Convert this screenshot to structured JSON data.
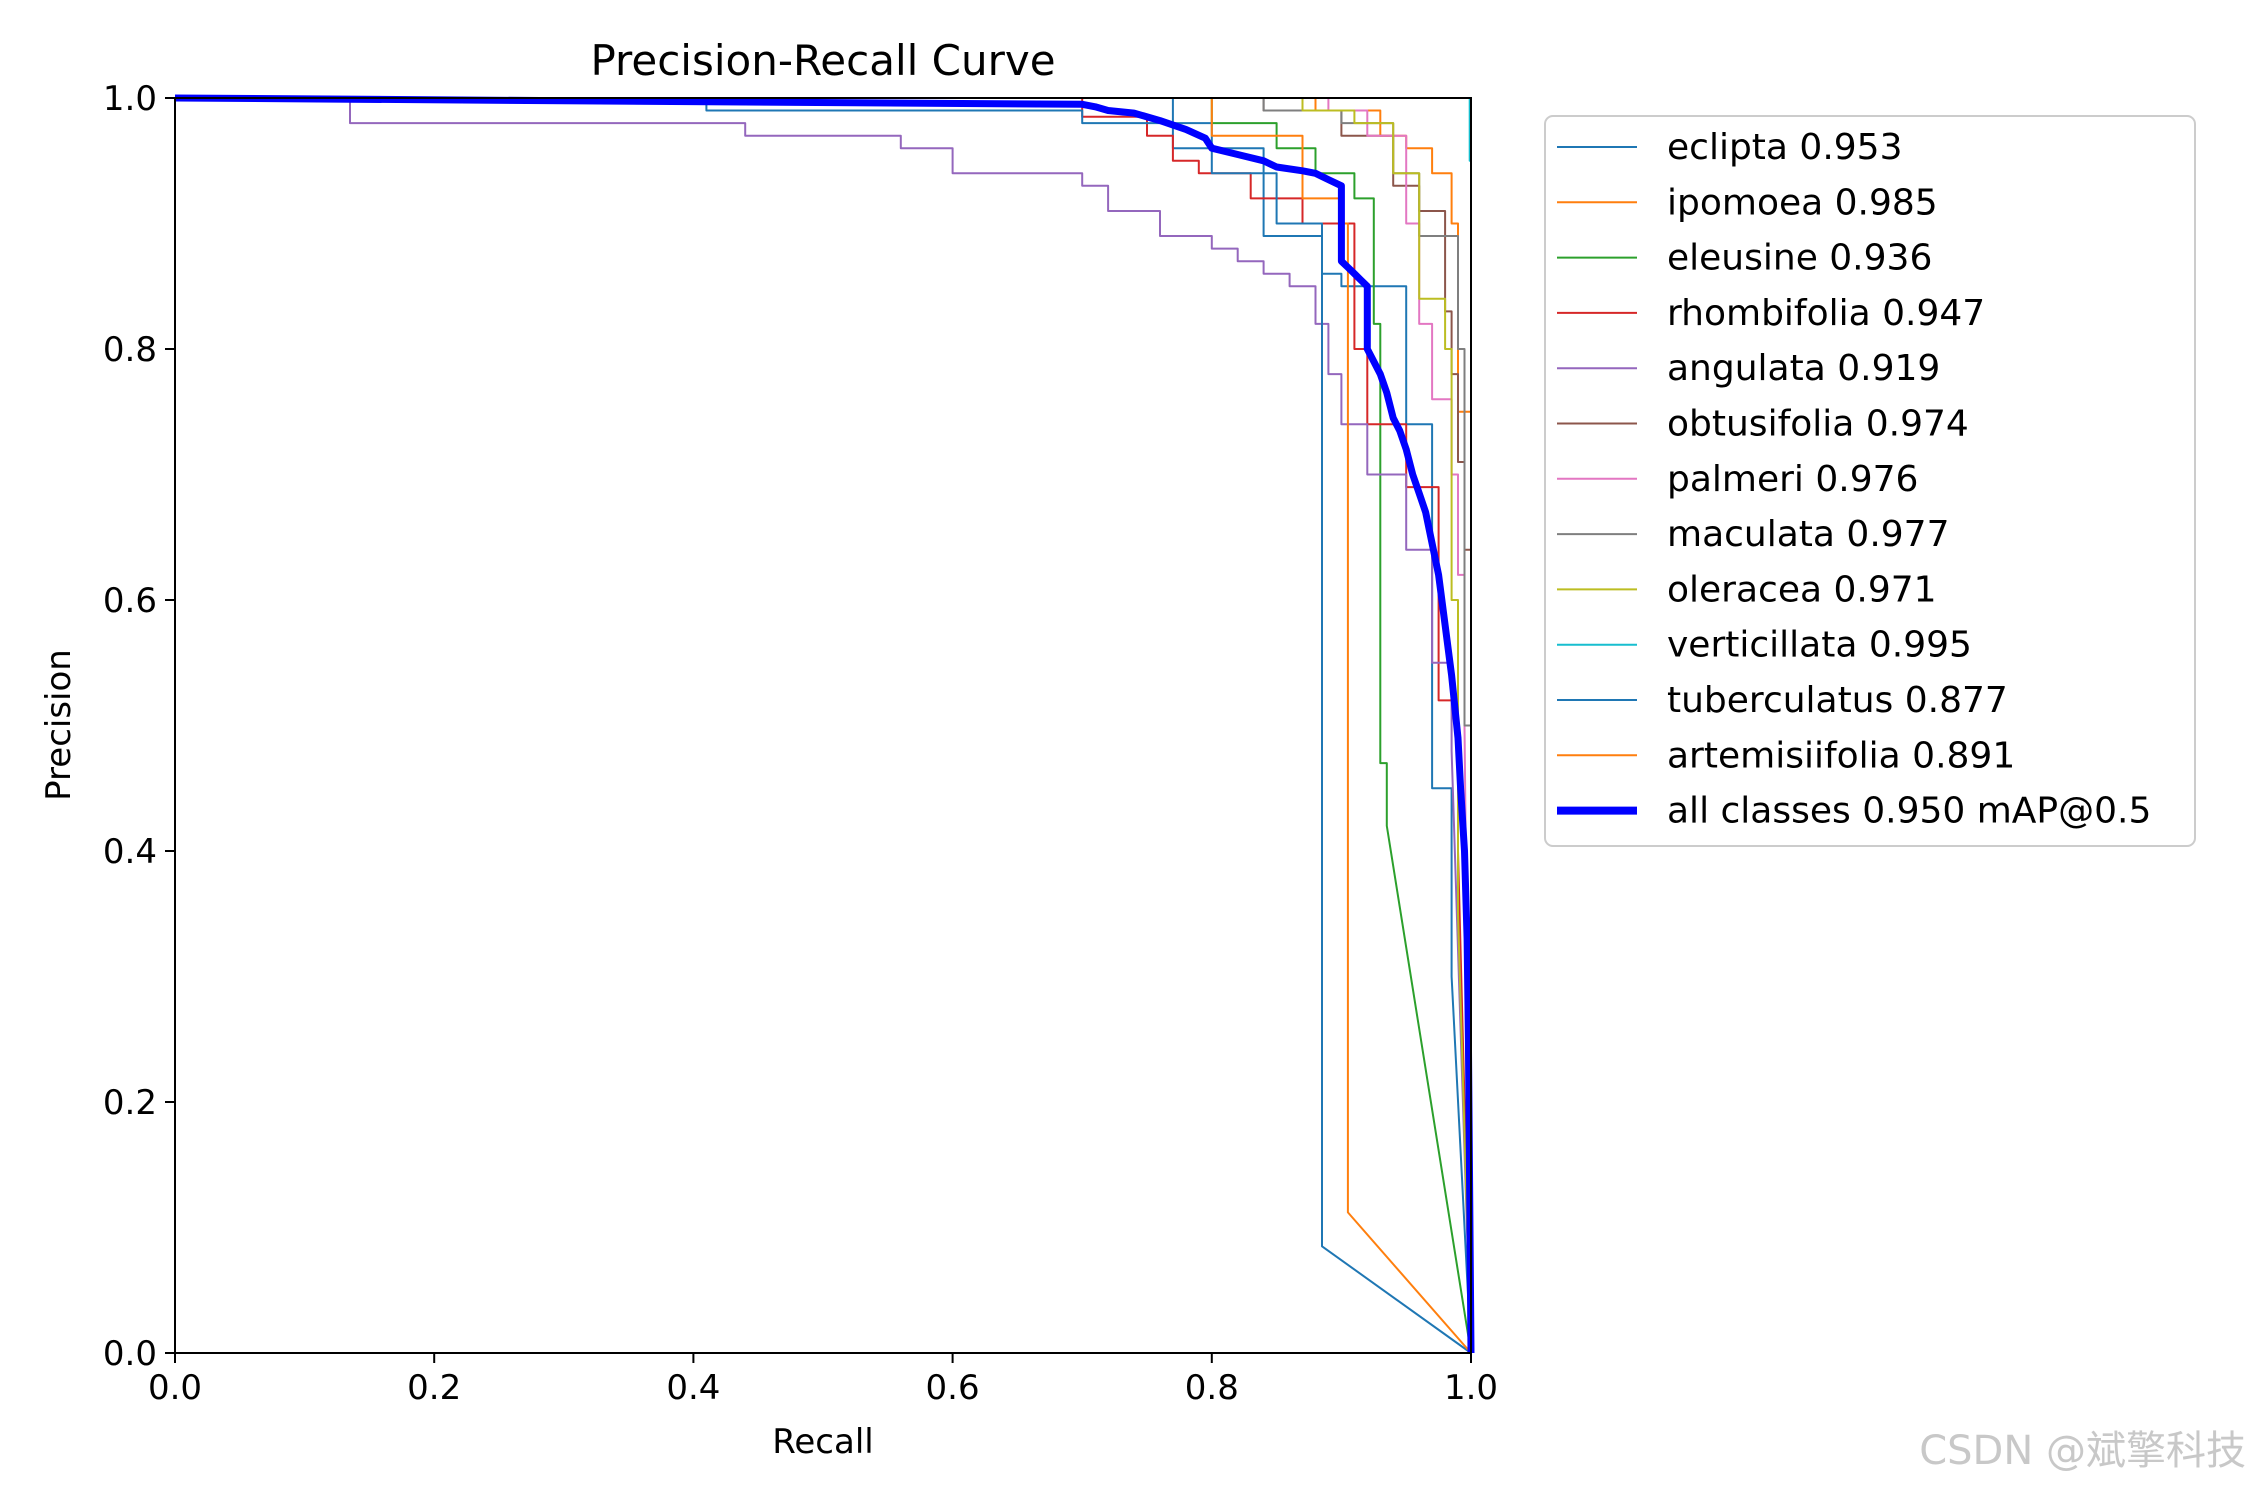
{
  "chart_data": {
    "type": "line",
    "title": "Precision-Recall Curve",
    "xlabel": "Recall",
    "ylabel": "Precision",
    "xlim": [
      0,
      1
    ],
    "ylim": [
      0,
      1
    ],
    "xticks": [
      "0.0",
      "0.2",
      "0.4",
      "0.6",
      "0.8",
      "1.0"
    ],
    "yticks": [
      "0.0",
      "0.2",
      "0.4",
      "0.6",
      "0.8",
      "1.0"
    ],
    "grid": false,
    "legend_position": "outside-right",
    "series": [
      {
        "name": "eclipta 0.953",
        "color": "#1f77b4",
        "width": 1,
        "points": [
          [
            0,
            1
          ],
          [
            0.71,
            1
          ],
          [
            0.77,
            1
          ],
          [
            0.77,
            0.96
          ],
          [
            0.84,
            0.96
          ],
          [
            0.84,
            0.89
          ],
          [
            0.885,
            0.89
          ],
          [
            0.885,
            0.86
          ],
          [
            0.9,
            0.86
          ],
          [
            0.9,
            0.85
          ],
          [
            0.95,
            0.85
          ],
          [
            0.95,
            0.74
          ],
          [
            0.97,
            0.74
          ],
          [
            0.97,
            0.45
          ],
          [
            0.985,
            0.45
          ],
          [
            0.985,
            0.3
          ],
          [
            1,
            0
          ]
        ]
      },
      {
        "name": "ipomoea 0.985",
        "color": "#ff7f0e",
        "width": 1,
        "points": [
          [
            0,
            1
          ],
          [
            0.88,
            1
          ],
          [
            0.88,
            0.99
          ],
          [
            0.93,
            0.99
          ],
          [
            0.93,
            0.97
          ],
          [
            0.95,
            0.97
          ],
          [
            0.95,
            0.96
          ],
          [
            0.97,
            0.96
          ],
          [
            0.97,
            0.94
          ],
          [
            0.985,
            0.94
          ],
          [
            0.985,
            0.9
          ],
          [
            0.99,
            0.9
          ],
          [
            0.99,
            0.75
          ],
          [
            1,
            0.75
          ],
          [
            1,
            0
          ]
        ]
      },
      {
        "name": "eleusine 0.936",
        "color": "#2ca02c",
        "width": 1,
        "points": [
          [
            0,
            1
          ],
          [
            0.8,
            1
          ],
          [
            0.8,
            0.98
          ],
          [
            0.85,
            0.98
          ],
          [
            0.85,
            0.96
          ],
          [
            0.88,
            0.96
          ],
          [
            0.88,
            0.94
          ],
          [
            0.91,
            0.94
          ],
          [
            0.91,
            0.92
          ],
          [
            0.925,
            0.92
          ],
          [
            0.925,
            0.82
          ],
          [
            0.93,
            0.82
          ],
          [
            0.93,
            0.47
          ],
          [
            0.935,
            0.47
          ],
          [
            0.935,
            0.42
          ],
          [
            1,
            0
          ]
        ]
      },
      {
        "name": "rhombifolia 0.947",
        "color": "#d62728",
        "width": 1,
        "points": [
          [
            0,
            1
          ],
          [
            0.7,
            1
          ],
          [
            0.7,
            0.985
          ],
          [
            0.75,
            0.985
          ],
          [
            0.75,
            0.97
          ],
          [
            0.77,
            0.97
          ],
          [
            0.77,
            0.95
          ],
          [
            0.79,
            0.95
          ],
          [
            0.79,
            0.94
          ],
          [
            0.83,
            0.94
          ],
          [
            0.83,
            0.92
          ],
          [
            0.87,
            0.92
          ],
          [
            0.87,
            0.9
          ],
          [
            0.91,
            0.9
          ],
          [
            0.91,
            0.8
          ],
          [
            0.92,
            0.8
          ],
          [
            0.92,
            0.74
          ],
          [
            0.95,
            0.74
          ],
          [
            0.95,
            0.69
          ],
          [
            0.975,
            0.69
          ],
          [
            0.975,
            0.52
          ],
          [
            0.99,
            0.52
          ],
          [
            0.99,
            0.4
          ],
          [
            1,
            0
          ]
        ]
      },
      {
        "name": "angulata 0.919",
        "color": "#9467bd",
        "width": 1,
        "points": [
          [
            0,
            1
          ],
          [
            0.135,
            1
          ],
          [
            0.135,
            0.98
          ],
          [
            0.44,
            0.98
          ],
          [
            0.44,
            0.97
          ],
          [
            0.56,
            0.97
          ],
          [
            0.56,
            0.96
          ],
          [
            0.6,
            0.96
          ],
          [
            0.6,
            0.94
          ],
          [
            0.7,
            0.94
          ],
          [
            0.7,
            0.93
          ],
          [
            0.72,
            0.93
          ],
          [
            0.72,
            0.91
          ],
          [
            0.76,
            0.91
          ],
          [
            0.76,
            0.89
          ],
          [
            0.8,
            0.89
          ],
          [
            0.8,
            0.88
          ],
          [
            0.82,
            0.88
          ],
          [
            0.82,
            0.87
          ],
          [
            0.84,
            0.87
          ],
          [
            0.84,
            0.86
          ],
          [
            0.86,
            0.86
          ],
          [
            0.86,
            0.85
          ],
          [
            0.88,
            0.85
          ],
          [
            0.88,
            0.82
          ],
          [
            0.89,
            0.82
          ],
          [
            0.89,
            0.78
          ],
          [
            0.9,
            0.78
          ],
          [
            0.9,
            0.74
          ],
          [
            0.92,
            0.74
          ],
          [
            0.92,
            0.7
          ],
          [
            0.95,
            0.7
          ],
          [
            0.95,
            0.64
          ],
          [
            0.97,
            0.64
          ],
          [
            0.97,
            0.55
          ],
          [
            0.985,
            0.55
          ],
          [
            0.985,
            0.48
          ],
          [
            1,
            0
          ]
        ]
      },
      {
        "name": "obtusifolia 0.974",
        "color": "#8c564b",
        "width": 1,
        "points": [
          [
            0,
            1
          ],
          [
            0.84,
            1
          ],
          [
            0.84,
            0.99
          ],
          [
            0.9,
            0.99
          ],
          [
            0.9,
            0.97
          ],
          [
            0.94,
            0.97
          ],
          [
            0.94,
            0.93
          ],
          [
            0.96,
            0.93
          ],
          [
            0.96,
            0.91
          ],
          [
            0.98,
            0.91
          ],
          [
            0.98,
            0.83
          ],
          [
            0.985,
            0.83
          ],
          [
            0.985,
            0.78
          ],
          [
            0.99,
            0.78
          ],
          [
            0.99,
            0.71
          ],
          [
            0.995,
            0.71
          ],
          [
            0.995,
            0.64
          ],
          [
            1,
            0.64
          ],
          [
            1,
            0
          ]
        ]
      },
      {
        "name": "palmeri 0.976",
        "color": "#e377c2",
        "width": 1,
        "points": [
          [
            0,
            1
          ],
          [
            0.89,
            1
          ],
          [
            0.89,
            0.99
          ],
          [
            0.92,
            0.99
          ],
          [
            0.92,
            0.97
          ],
          [
            0.95,
            0.97
          ],
          [
            0.95,
            0.9
          ],
          [
            0.96,
            0.9
          ],
          [
            0.96,
            0.82
          ],
          [
            0.97,
            0.82
          ],
          [
            0.97,
            0.76
          ],
          [
            0.985,
            0.76
          ],
          [
            0.985,
            0.7
          ],
          [
            0.99,
            0.7
          ],
          [
            0.99,
            0.62
          ],
          [
            0.995,
            0.62
          ],
          [
            0.995,
            0.5
          ],
          [
            1,
            0
          ]
        ]
      },
      {
        "name": "maculata 0.977",
        "color": "#7f7f7f",
        "width": 1,
        "points": [
          [
            0,
            1
          ],
          [
            0.84,
            1
          ],
          [
            0.84,
            0.99
          ],
          [
            0.9,
            0.99
          ],
          [
            0.9,
            0.98
          ],
          [
            0.94,
            0.98
          ],
          [
            0.94,
            0.94
          ],
          [
            0.96,
            0.94
          ],
          [
            0.96,
            0.89
          ],
          [
            0.99,
            0.89
          ],
          [
            0.99,
            0.8
          ],
          [
            0.995,
            0.8
          ],
          [
            0.995,
            0.5
          ],
          [
            1,
            0.5
          ],
          [
            1,
            0
          ]
        ]
      },
      {
        "name": "oleracea 0.971",
        "color": "#bcbd22",
        "width": 1,
        "points": [
          [
            0,
            1
          ],
          [
            0.87,
            1
          ],
          [
            0.87,
            0.99
          ],
          [
            0.91,
            0.99
          ],
          [
            0.91,
            0.98
          ],
          [
            0.94,
            0.98
          ],
          [
            0.94,
            0.94
          ],
          [
            0.96,
            0.94
          ],
          [
            0.96,
            0.84
          ],
          [
            0.98,
            0.84
          ],
          [
            0.98,
            0.8
          ],
          [
            0.985,
            0.8
          ],
          [
            0.985,
            0.6
          ],
          [
            0.99,
            0.6
          ],
          [
            0.99,
            0.35
          ],
          [
            1,
            0
          ]
        ]
      },
      {
        "name": "verticillata 0.995",
        "color": "#17becf",
        "width": 1,
        "points": [
          [
            0,
            1
          ],
          [
            0.999,
            1
          ],
          [
            0.999,
            0.95
          ],
          [
            1,
            0.95
          ],
          [
            1,
            0
          ]
        ]
      },
      {
        "name": "tuberculatus 0.877",
        "color": "#1f77b4",
        "width": 1,
        "points": [
          [
            0,
            1
          ],
          [
            0.41,
            1
          ],
          [
            0.41,
            0.99
          ],
          [
            0.7,
            0.99
          ],
          [
            0.7,
            0.98
          ],
          [
            0.8,
            0.98
          ],
          [
            0.8,
            0.94
          ],
          [
            0.85,
            0.94
          ],
          [
            0.85,
            0.9
          ],
          [
            0.885,
            0.9
          ],
          [
            0.885,
            0.085
          ],
          [
            1,
            0
          ]
        ]
      },
      {
        "name": "artemisiifolia 0.891",
        "color": "#ff7f0e",
        "width": 1,
        "points": [
          [
            0,
            1
          ],
          [
            0.8,
            1
          ],
          [
            0.8,
            0.97
          ],
          [
            0.87,
            0.97
          ],
          [
            0.87,
            0.92
          ],
          [
            0.9,
            0.92
          ],
          [
            0.9,
            0.9
          ],
          [
            0.905,
            0.9
          ],
          [
            0.905,
            0.112
          ],
          [
            1,
            0
          ]
        ]
      },
      {
        "name": "all classes 0.950 mAP@0.5",
        "color": "#0000ff",
        "width": 3,
        "points": [
          [
            0,
            1
          ],
          [
            0.7,
            0.995
          ],
          [
            0.71,
            0.993
          ],
          [
            0.72,
            0.99
          ],
          [
            0.74,
            0.988
          ],
          [
            0.76,
            0.982
          ],
          [
            0.78,
            0.975
          ],
          [
            0.795,
            0.968
          ],
          [
            0.8,
            0.96
          ],
          [
            0.82,
            0.955
          ],
          [
            0.84,
            0.95
          ],
          [
            0.85,
            0.945
          ],
          [
            0.87,
            0.942
          ],
          [
            0.88,
            0.94
          ],
          [
            0.89,
            0.935
          ],
          [
            0.9,
            0.93
          ],
          [
            0.9,
            0.87
          ],
          [
            0.905,
            0.865
          ],
          [
            0.91,
            0.86
          ],
          [
            0.915,
            0.855
          ],
          [
            0.92,
            0.85
          ],
          [
            0.92,
            0.8
          ],
          [
            0.925,
            0.79
          ],
          [
            0.93,
            0.78
          ],
          [
            0.935,
            0.765
          ],
          [
            0.94,
            0.745
          ],
          [
            0.945,
            0.735
          ],
          [
            0.95,
            0.72
          ],
          [
            0.955,
            0.7
          ],
          [
            0.96,
            0.685
          ],
          [
            0.965,
            0.67
          ],
          [
            0.97,
            0.645
          ],
          [
            0.975,
            0.62
          ],
          [
            0.98,
            0.58
          ],
          [
            0.985,
            0.54
          ],
          [
            0.99,
            0.49
          ],
          [
            0.992,
            0.45
          ],
          [
            0.995,
            0.4
          ],
          [
            0.997,
            0.33
          ],
          [
            0.998,
            0.25
          ],
          [
            1,
            0
          ]
        ]
      }
    ]
  },
  "watermark": "CSDN @斌擎科技"
}
